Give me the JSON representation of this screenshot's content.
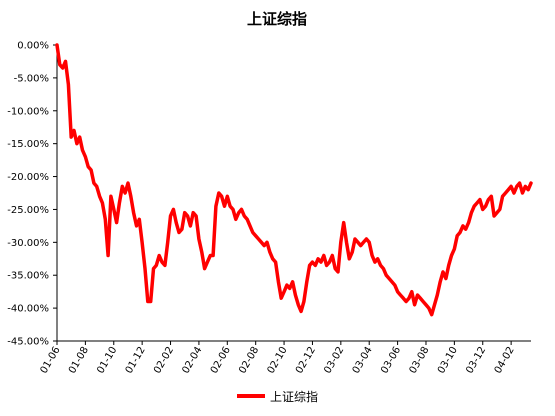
{
  "chart_data": {
    "type": "line",
    "title": "上证综指",
    "xlabel": "",
    "ylabel": "",
    "ylim": [
      -0.45,
      0.0
    ],
    "y_ticks": [
      0.0,
      -0.05,
      -0.1,
      -0.15,
      -0.2,
      -0.25,
      -0.3,
      -0.35,
      -0.4,
      -0.45
    ],
    "y_tick_labels": [
      "0.00%",
      "-5.00%",
      "-10.00%",
      "-15.00%",
      "-20.00%",
      "-25.00%",
      "-30.00%",
      "-35.00%",
      "-40.00%",
      "-45.00%"
    ],
    "x_tick_labels": [
      "01-06",
      "01-08",
      "01-10",
      "01-12",
      "02-02",
      "02-04",
      "02-06",
      "02-08",
      "02-10",
      "02-12",
      "03-02",
      "03-04",
      "03-06",
      "03-08",
      "03-10",
      "03-12",
      "04-02"
    ],
    "grid": false,
    "legend": "bottom",
    "series": [
      {
        "name": "上证综指",
        "color": "#ff0000",
        "x": [
          0.0,
          0.1,
          0.2,
          0.3,
          0.4,
          0.5,
          0.6,
          0.7,
          0.8,
          0.9,
          1.0,
          1.1,
          1.2,
          1.3,
          1.4,
          1.5,
          1.6,
          1.7,
          1.8,
          1.9,
          2.0,
          2.1,
          2.2,
          2.3,
          2.4,
          2.5,
          2.6,
          2.7,
          2.8,
          2.9,
          3.0,
          3.1,
          3.2,
          3.3,
          3.4,
          3.5,
          3.6,
          3.7,
          3.8,
          3.9,
          4.0,
          4.1,
          4.2,
          4.3,
          4.4,
          4.5,
          4.6,
          4.7,
          4.8,
          4.9,
          5.0,
          5.1,
          5.2,
          5.3,
          5.4,
          5.5,
          5.6,
          5.7,
          5.8,
          5.9,
          6.0,
          6.1,
          6.2,
          6.3,
          6.4,
          6.5,
          6.6,
          6.7,
          6.8,
          6.9,
          7.0,
          7.1,
          7.2,
          7.3,
          7.4,
          7.5,
          7.6,
          7.7,
          7.8,
          7.9,
          8.0,
          8.1,
          8.2,
          8.3,
          8.4,
          8.5,
          8.6,
          8.7,
          8.8,
          8.9,
          9.0,
          9.1,
          9.2,
          9.3,
          9.4,
          9.5,
          9.6,
          9.7,
          9.8,
          9.9,
          10.0,
          10.1,
          10.2,
          10.3,
          10.4,
          10.5,
          10.6,
          10.7,
          10.8,
          10.9,
          11.0,
          11.1,
          11.2,
          11.3,
          11.4,
          11.5,
          11.6,
          11.7,
          11.8,
          11.9,
          12.0,
          12.1,
          12.2,
          12.3,
          12.4,
          12.5,
          12.6,
          12.7,
          12.8,
          12.9,
          13.0,
          13.1,
          13.2,
          13.3,
          13.4,
          13.5,
          13.6,
          13.7,
          13.8,
          13.9,
          14.0,
          14.1,
          14.2,
          14.3,
          14.4,
          14.5,
          14.6,
          14.7,
          14.8,
          14.9,
          15.0,
          15.1,
          15.2,
          15.3,
          15.4,
          15.5,
          15.6,
          15.7,
          15.8,
          15.9,
          16.0,
          16.1,
          16.2,
          16.3,
          16.4,
          16.5,
          16.6,
          16.7
        ],
        "values": [
          0.0,
          -0.03,
          -0.035,
          -0.025,
          -0.06,
          -0.14,
          -0.13,
          -0.15,
          -0.14,
          -0.16,
          -0.17,
          -0.185,
          -0.19,
          -0.21,
          -0.215,
          -0.23,
          -0.24,
          -0.265,
          -0.32,
          -0.23,
          -0.25,
          -0.27,
          -0.24,
          -0.215,
          -0.225,
          -0.21,
          -0.23,
          -0.255,
          -0.275,
          -0.265,
          -0.3,
          -0.34,
          -0.39,
          -0.39,
          -0.34,
          -0.335,
          -0.32,
          -0.33,
          -0.335,
          -0.3,
          -0.26,
          -0.25,
          -0.27,
          -0.285,
          -0.28,
          -0.255,
          -0.26,
          -0.275,
          -0.255,
          -0.26,
          -0.295,
          -0.315,
          -0.34,
          -0.33,
          -0.32,
          -0.32,
          -0.245,
          -0.225,
          -0.23,
          -0.245,
          -0.23,
          -0.245,
          -0.25,
          -0.265,
          -0.255,
          -0.25,
          -0.26,
          -0.265,
          -0.275,
          -0.285,
          -0.29,
          -0.295,
          -0.3,
          -0.305,
          -0.3,
          -0.315,
          -0.325,
          -0.33,
          -0.36,
          -0.385,
          -0.375,
          -0.365,
          -0.37,
          -0.36,
          -0.38,
          -0.395,
          -0.405,
          -0.39,
          -0.36,
          -0.335,
          -0.33,
          -0.335,
          -0.325,
          -0.33,
          -0.32,
          -0.335,
          -0.33,
          -0.32,
          -0.34,
          -0.345,
          -0.3,
          -0.27,
          -0.3,
          -0.325,
          -0.315,
          -0.295,
          -0.3,
          -0.305,
          -0.3,
          -0.295,
          -0.3,
          -0.32,
          -0.33,
          -0.325,
          -0.335,
          -0.34,
          -0.35,
          -0.355,
          -0.36,
          -0.365,
          -0.375,
          -0.38,
          -0.385,
          -0.39,
          -0.385,
          -0.375,
          -0.395,
          -0.38,
          -0.385,
          -0.39,
          -0.395,
          -0.4,
          -0.41,
          -0.395,
          -0.38,
          -0.36,
          -0.345,
          -0.355,
          -0.335,
          -0.32,
          -0.31,
          -0.29,
          -0.285,
          -0.275,
          -0.28,
          -0.27,
          -0.255,
          -0.245,
          -0.24,
          -0.235,
          -0.25,
          -0.245,
          -0.235,
          -0.23,
          -0.26,
          -0.255,
          -0.25,
          -0.23,
          -0.225,
          -0.22,
          -0.215,
          -0.225,
          -0.215,
          -0.21,
          -0.225,
          -0.215,
          -0.22,
          -0.21
        ]
      }
    ]
  }
}
